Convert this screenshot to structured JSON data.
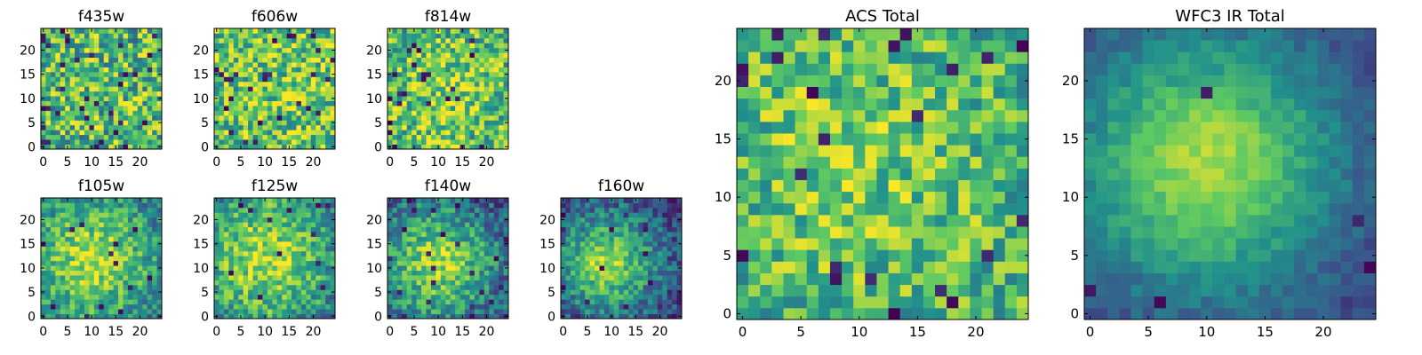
{
  "figure": {
    "colormap": "viridis",
    "colors": [
      "#440154",
      "#3b528b",
      "#21918c",
      "#5ec962",
      "#fde725"
    ]
  },
  "chart_data": [
    {
      "type": "heatmap",
      "title": "f435w",
      "grid_size": [
        25,
        25
      ],
      "xticks": [
        "0",
        "5",
        "10",
        "15",
        "20"
      ],
      "yticks": [
        "0",
        "5",
        "10",
        "15",
        "20"
      ],
      "pattern": "noise",
      "center": [
        12,
        11
      ],
      "sigma": 20,
      "amp": 0.08,
      "noise": 0.34,
      "base": 0.6,
      "dark_rate": 0.05,
      "seed": 11
    },
    {
      "type": "heatmap",
      "title": "f606w",
      "grid_size": [
        25,
        25
      ],
      "xticks": [
        "0",
        "5",
        "10",
        "15",
        "20"
      ],
      "yticks": [
        "0",
        "5",
        "10",
        "15",
        "20"
      ],
      "pattern": "noise",
      "center": [
        12,
        11
      ],
      "sigma": 20,
      "amp": 0.1,
      "noise": 0.32,
      "base": 0.66,
      "dark_rate": 0.04,
      "seed": 23
    },
    {
      "type": "heatmap",
      "title": "f814w",
      "grid_size": [
        25,
        25
      ],
      "xticks": [
        "0",
        "5",
        "10",
        "15",
        "20"
      ],
      "yticks": [
        "0",
        "5",
        "10",
        "15",
        "20"
      ],
      "pattern": "noise",
      "center": [
        11,
        11
      ],
      "sigma": 12,
      "amp": 0.18,
      "noise": 0.3,
      "base": 0.6,
      "dark_rate": 0.04,
      "seed": 37
    },
    {
      "type": "heatmap",
      "title": "f105w",
      "grid_size": [
        25,
        25
      ],
      "xticks": [
        "0",
        "5",
        "10",
        "15",
        "20"
      ],
      "yticks": [
        "0",
        "5",
        "10",
        "15",
        "20"
      ],
      "pattern": "blob",
      "center": [
        10,
        12
      ],
      "sigma": 7,
      "amp": 0.35,
      "noise": 0.22,
      "base": 0.52,
      "dark_rate": 0.02,
      "seed": 41
    },
    {
      "type": "heatmap",
      "title": "f125w",
      "grid_size": [
        25,
        25
      ],
      "xticks": [
        "0",
        "5",
        "10",
        "15",
        "20"
      ],
      "yticks": [
        "0",
        "5",
        "10",
        "15",
        "20"
      ],
      "pattern": "blob",
      "center": [
        10,
        12
      ],
      "sigma": 7,
      "amp": 0.32,
      "noise": 0.24,
      "base": 0.55,
      "dark_rate": 0.02,
      "seed": 53
    },
    {
      "type": "heatmap",
      "title": "f140w",
      "grid_size": [
        25,
        25
      ],
      "xticks": [
        "0",
        "5",
        "10",
        "15",
        "20"
      ],
      "yticks": [
        "0",
        "5",
        "10",
        "15",
        "20"
      ],
      "pattern": "blob",
      "center": [
        10,
        11
      ],
      "sigma": 6,
      "amp": 0.4,
      "noise": 0.22,
      "base": 0.45,
      "dark_rate": 0.03,
      "seed": 67
    },
    {
      "type": "heatmap",
      "title": "f160w",
      "grid_size": [
        25,
        25
      ],
      "xticks": [
        "0",
        "5",
        "10",
        "15",
        "20"
      ],
      "yticks": [
        "0",
        "5",
        "10",
        "15",
        "20"
      ],
      "pattern": "blob",
      "center": [
        9,
        11
      ],
      "sigma": 5,
      "amp": 0.45,
      "noise": 0.2,
      "base": 0.42,
      "dark_rate": 0.03,
      "seed": 79
    },
    {
      "type": "heatmap",
      "title": "ACS Total",
      "grid_size": [
        25,
        25
      ],
      "xticks": [
        "0",
        "5",
        "10",
        "15",
        "20"
      ],
      "yticks": [
        "0",
        "5",
        "10",
        "15",
        "20"
      ],
      "pattern": "noise",
      "center": [
        10,
        13
      ],
      "sigma": 9,
      "amp": 0.15,
      "noise": 0.26,
      "base": 0.62,
      "dark_rate": 0.04,
      "seed": 97
    },
    {
      "type": "heatmap",
      "title": "WFC3 IR Total",
      "grid_size": [
        25,
        25
      ],
      "xticks": [
        "0",
        "5",
        "10",
        "15",
        "20"
      ],
      "yticks": [
        "0",
        "5",
        "10",
        "15",
        "20"
      ],
      "pattern": "blob",
      "center": [
        10,
        13
      ],
      "sigma": 6,
      "amp": 0.5,
      "noise": 0.08,
      "base": 0.38,
      "dark_rate": 0.01,
      "seed": 113
    }
  ]
}
